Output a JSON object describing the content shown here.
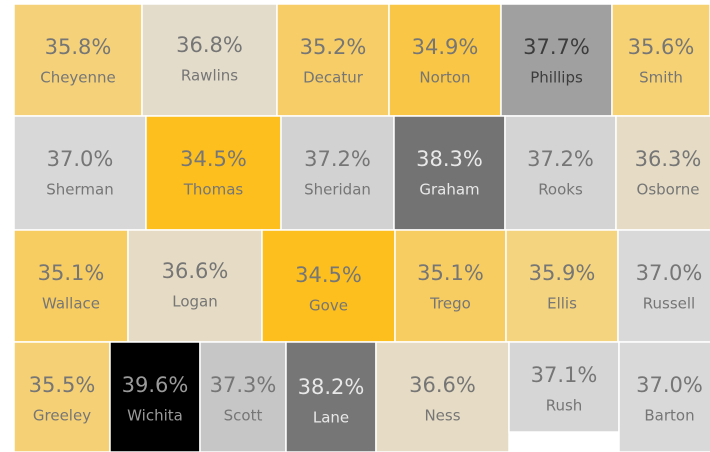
{
  "chart_data": {
    "type": "choropleth",
    "categories": [
      "Cheyenne",
      "Rawlins",
      "Decatur",
      "Norton",
      "Phillips",
      "Smith",
      "Sherman",
      "Thomas",
      "Sheridan",
      "Graham",
      "Rooks",
      "Osborne",
      "Wallace",
      "Logan",
      "Gove",
      "Trego",
      "Ellis",
      "Russell",
      "Greeley",
      "Wichita",
      "Scott",
      "Lane",
      "Ness",
      "Rush",
      "Barton"
    ],
    "values": [
      35.8,
      36.8,
      35.2,
      34.9,
      37.7,
      35.6,
      37.0,
      34.5,
      37.2,
      38.3,
      37.2,
      36.3,
      35.1,
      36.6,
      34.5,
      35.1,
      35.9,
      37.0,
      35.5,
      39.6,
      37.3,
      38.2,
      36.6,
      37.1,
      37.0
    ],
    "value_labels": [
      "35.8%",
      "36.8%",
      "35.2%",
      "34.9%",
      "37.7%",
      "35.6%",
      "37.0%",
      "34.5%",
      "37.2%",
      "38.3%",
      "37.2%",
      "36.3%",
      "35.1%",
      "36.6%",
      "34.5%",
      "35.1%",
      "35.9%",
      "37.0%",
      "35.5%",
      "39.6%",
      "37.3%",
      "38.2%",
      "36.6%",
      "37.1%",
      "37.0%"
    ],
    "colors": [
      "#f5d27a",
      "#e3dccb",
      "#f6cd67",
      "#f9c645",
      "#a0a0a0",
      "#f6d274",
      "#d8d8d8",
      "#fcbf1e",
      "#d2d2d2",
      "#737373",
      "#d4d4d4",
      "#e6dcc6",
      "#f7cd62",
      "#e6dbc4",
      "#fcbf1e",
      "#f7cd62",
      "#f4d47e",
      "#d9d9d9",
      "#f6d074",
      "#000000",
      "#c6c6c6",
      "#767676",
      "#e6dbc4",
      "#d6d6d6",
      "#d9d9d9"
    ]
  }
}
